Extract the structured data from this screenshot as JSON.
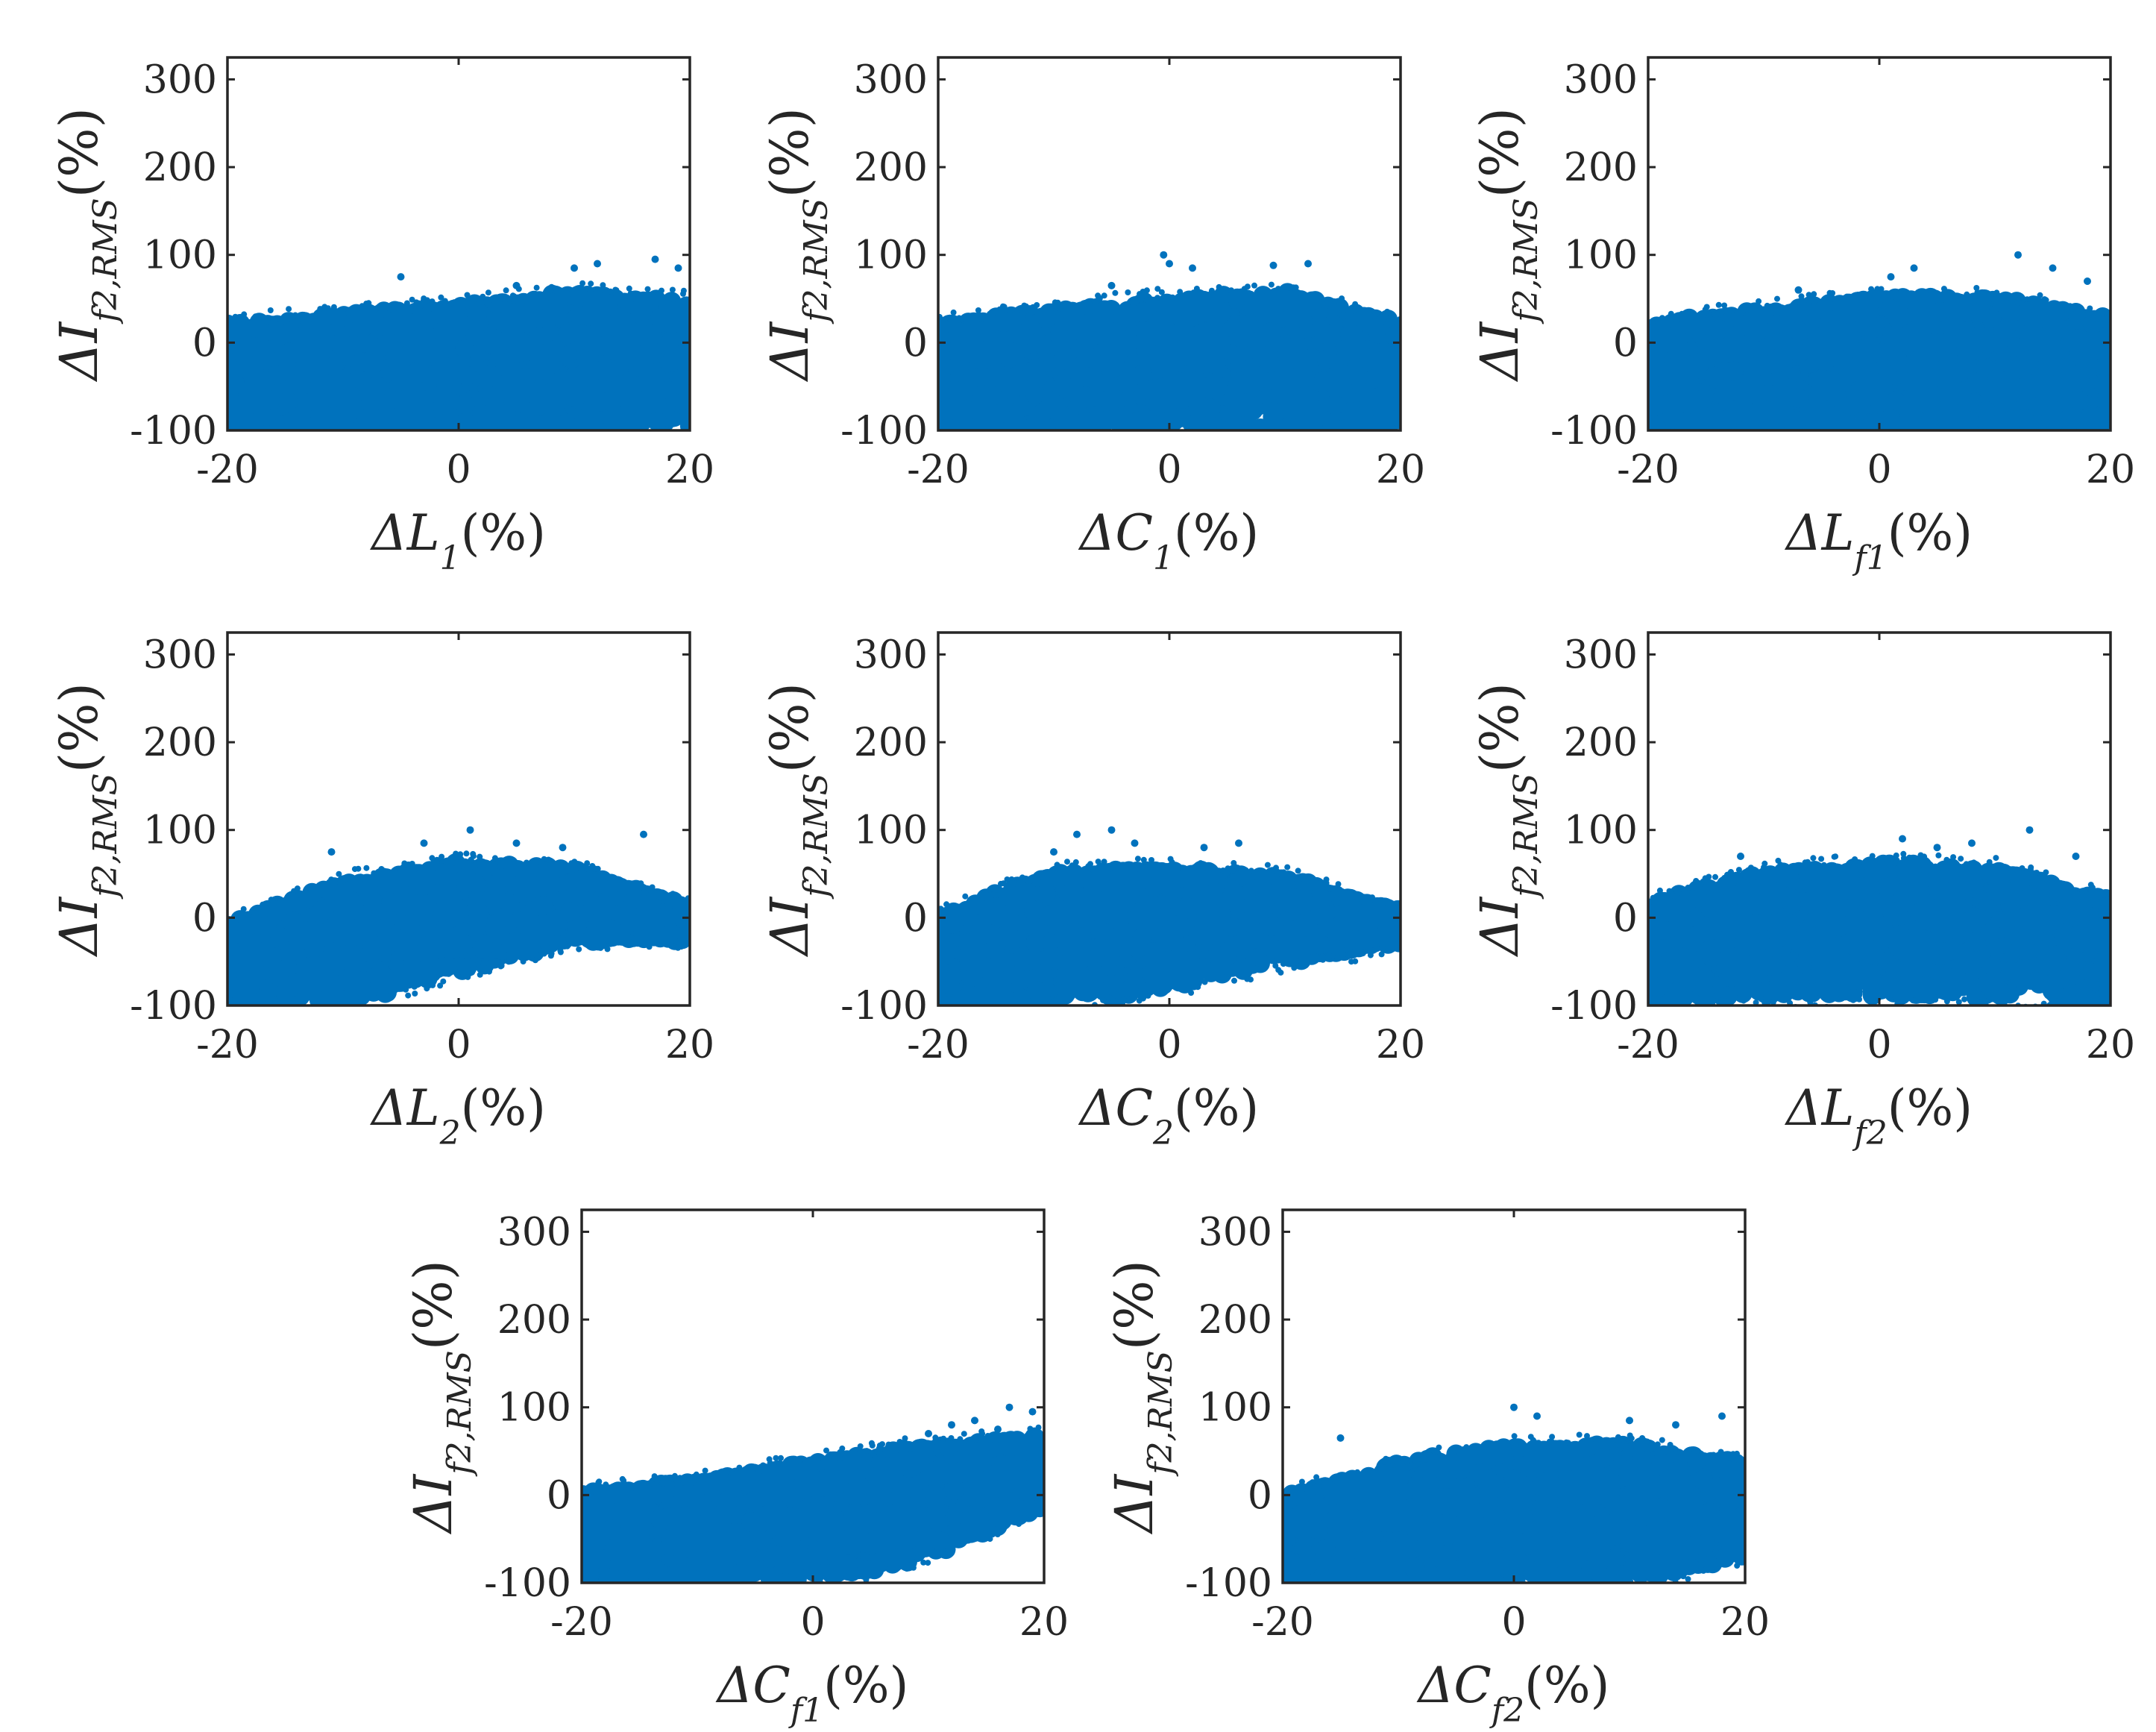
{
  "figure": {
    "marker_color": "#0072BD",
    "axis_color": "#262626",
    "text_color": "#262626"
  },
  "chart_data": [
    {
      "type": "scatter",
      "xlabel": "ΔL1(%)",
      "ylabel": "ΔIf2,RMS(%)",
      "xlim": [
        -20,
        20
      ],
      "ylim": [
        -100,
        325
      ],
      "xticks": [
        -20,
        0,
        20
      ],
      "yticks": [
        -100,
        0,
        100,
        200,
        300
      ],
      "grid": false,
      "envelope": {
        "x": [
          -20,
          -10,
          0,
          10,
          20
        ],
        "upper": [
          20,
          30,
          40,
          55,
          45
        ],
        "lower": [
          -100,
          -100,
          -100,
          -100,
          -100
        ]
      },
      "outliers": [
        [
          -5,
          75
        ],
        [
          10,
          85
        ],
        [
          12,
          90
        ],
        [
          17,
          95
        ],
        [
          19,
          85
        ],
        [
          5,
          65
        ]
      ]
    },
    {
      "type": "scatter",
      "xlabel": "ΔC1(%)",
      "ylabel": "ΔIf2,RMS(%)",
      "xlim": [
        -20,
        20
      ],
      "ylim": [
        -100,
        325
      ],
      "xticks": [
        -20,
        0,
        20
      ],
      "yticks": [
        -100,
        0,
        100,
        200,
        300
      ],
      "grid": false,
      "envelope": {
        "x": [
          -20,
          -10,
          0,
          10,
          20
        ],
        "upper": [
          20,
          35,
          50,
          55,
          20
        ],
        "lower": [
          -100,
          -100,
          -100,
          -100,
          -100
        ]
      },
      "outliers": [
        [
          -0.5,
          100
        ],
        [
          0,
          90
        ],
        [
          2,
          85
        ],
        [
          9,
          88
        ],
        [
          12,
          90
        ],
        [
          -5,
          65
        ]
      ]
    },
    {
      "type": "scatter",
      "xlabel": "ΔLf1(%)",
      "ylabel": "ΔIf2,RMS(%)",
      "xlim": [
        -20,
        20
      ],
      "ylim": [
        -100,
        325
      ],
      "xticks": [
        -20,
        0,
        20
      ],
      "yticks": [
        -100,
        0,
        100,
        200,
        300
      ],
      "grid": false,
      "envelope": {
        "x": [
          -20,
          -10,
          0,
          10,
          20
        ],
        "upper": [
          20,
          35,
          50,
          50,
          25
        ],
        "lower": [
          -100,
          -100,
          -100,
          -100,
          -100
        ]
      },
      "outliers": [
        [
          -7,
          60
        ],
        [
          1,
          75
        ],
        [
          3,
          85
        ],
        [
          12,
          100
        ],
        [
          15,
          85
        ],
        [
          18,
          70
        ]
      ]
    },
    {
      "type": "scatter",
      "xlabel": "ΔL2(%)",
      "ylabel": "ΔIf2,RMS(%)",
      "xlim": [
        -20,
        20
      ],
      "ylim": [
        -100,
        325
      ],
      "xticks": [
        -20,
        0,
        20
      ],
      "yticks": [
        -100,
        0,
        100,
        200,
        300
      ],
      "grid": false,
      "envelope": {
        "x": [
          -20,
          -10,
          0,
          10,
          20
        ],
        "upper": [
          -10,
          40,
          60,
          55,
          10
        ],
        "lower": [
          -100,
          -100,
          -60,
          -25,
          -25
        ]
      },
      "outliers": [
        [
          -11,
          75
        ],
        [
          -3,
          85
        ],
        [
          1,
          100
        ],
        [
          5,
          85
        ],
        [
          9,
          80
        ],
        [
          16,
          95
        ]
      ]
    },
    {
      "type": "scatter",
      "xlabel": "ΔC2(%)",
      "ylabel": "ΔIf2,RMS(%)",
      "xlim": [
        -20,
        20
      ],
      "ylim": [
        -100,
        325
      ],
      "xticks": [
        -20,
        0,
        20
      ],
      "yticks": [
        -100,
        0,
        100,
        200,
        300
      ],
      "grid": false,
      "envelope": {
        "x": [
          -20,
          -10,
          0,
          10,
          20
        ],
        "upper": [
          0,
          50,
          55,
          45,
          5
        ],
        "lower": [
          -100,
          -100,
          -80,
          -50,
          -30
        ]
      },
      "outliers": [
        [
          -8,
          95
        ],
        [
          -5,
          100
        ],
        [
          -3,
          85
        ],
        [
          3,
          80
        ],
        [
          6,
          85
        ],
        [
          -10,
          75
        ]
      ]
    },
    {
      "type": "scatter",
      "xlabel": "ΔLf2(%)",
      "ylabel": "ΔIf2,RMS(%)",
      "xlim": [
        -20,
        20
      ],
      "ylim": [
        -100,
        325
      ],
      "xticks": [
        -20,
        0,
        20
      ],
      "yticks": [
        -100,
        0,
        100,
        200,
        300
      ],
      "grid": false,
      "envelope": {
        "x": [
          -20,
          -10,
          0,
          10,
          20
        ],
        "upper": [
          15,
          50,
          60,
          55,
          20
        ],
        "lower": [
          -100,
          -90,
          -90,
          -90,
          -100
        ]
      },
      "outliers": [
        [
          -12,
          70
        ],
        [
          2,
          90
        ],
        [
          5,
          80
        ],
        [
          8,
          85
        ],
        [
          13,
          100
        ],
        [
          17,
          70
        ]
      ]
    },
    {
      "type": "scatter",
      "xlabel": "ΔCf1(%)",
      "ylabel": "ΔIf2,RMS(%)",
      "xlim": [
        -20,
        20
      ],
      "ylim": [
        -100,
        325
      ],
      "xticks": [
        -20,
        0,
        20
      ],
      "yticks": [
        -100,
        0,
        100,
        200,
        300
      ],
      "grid": false,
      "envelope": {
        "x": [
          -20,
          -10,
          0,
          10,
          20
        ],
        "upper": [
          0,
          15,
          35,
          55,
          65
        ],
        "lower": [
          -100,
          -100,
          -100,
          -70,
          -15
        ]
      },
      "outliers": [
        [
          14,
          85
        ],
        [
          17,
          100
        ],
        [
          19,
          95
        ],
        [
          12,
          80
        ],
        [
          10,
          70
        ],
        [
          16,
          75
        ]
      ]
    },
    {
      "type": "scatter",
      "xlabel": "ΔCf2(%)",
      "ylabel": "ΔIf2,RMS(%)",
      "xlim": [
        -20,
        20
      ],
      "ylim": [
        -100,
        325
      ],
      "xticks": [
        -20,
        0,
        20
      ],
      "yticks": [
        -100,
        0,
        100,
        200,
        300
      ],
      "grid": false,
      "envelope": {
        "x": [
          -20,
          -10,
          0,
          10,
          20
        ],
        "upper": [
          -5,
          35,
          55,
          55,
          35
        ],
        "lower": [
          -100,
          -100,
          -100,
          -100,
          -70
        ]
      },
      "outliers": [
        [
          -15,
          65
        ],
        [
          0,
          100
        ],
        [
          2,
          90
        ],
        [
          10,
          85
        ],
        [
          14,
          80
        ],
        [
          18,
          90
        ]
      ]
    }
  ]
}
